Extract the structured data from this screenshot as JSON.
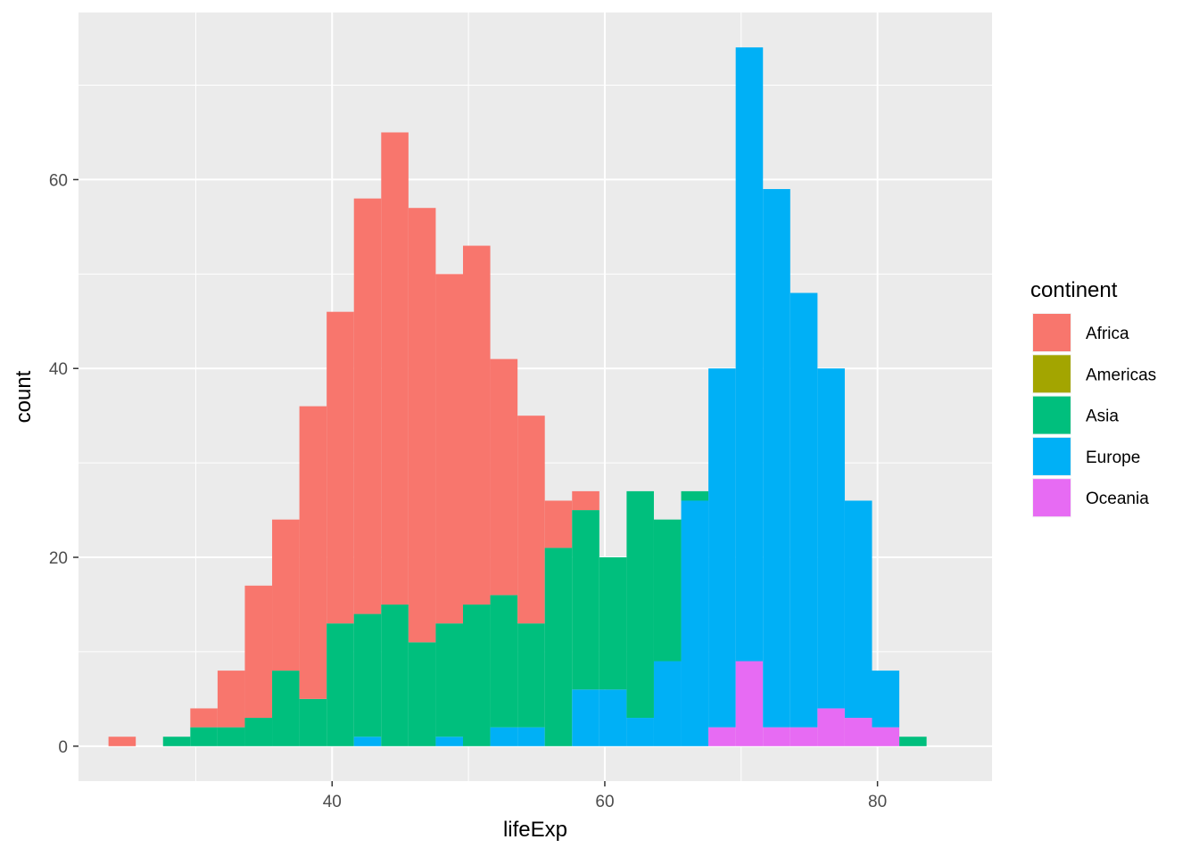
{
  "chart_data": {
    "type": "bar",
    "subtype": "stacked-histogram",
    "xlabel": "lifeExp",
    "ylabel": "count",
    "xlim": [
      21.4,
      88.4
    ],
    "ylim": [
      -3.7,
      77.7
    ],
    "x_ticks": [
      40,
      60,
      80
    ],
    "x_tick_labels": [
      "40",
      "60",
      "80"
    ],
    "y_ticks": [
      0,
      20,
      40,
      60
    ],
    "y_tick_labels": [
      "0",
      "20",
      "40",
      "60"
    ],
    "grid": true,
    "bin_edges": [
      23.6,
      25.6,
      27.6,
      29.6,
      31.6,
      33.6,
      35.6,
      37.6,
      39.6,
      41.6,
      43.6,
      45.6,
      47.6,
      49.6,
      51.6,
      53.6,
      55.6,
      57.6,
      59.6,
      61.6,
      63.6,
      65.6,
      67.6,
      69.6,
      71.6,
      73.6,
      75.6,
      77.6,
      79.6,
      81.6,
      83.6,
      85.6
    ],
    "legend": {
      "title": "continent",
      "position": "right"
    },
    "series": [
      {
        "name": "Oceania",
        "color": "#E76BF3",
        "values": [
          0,
          0,
          0,
          0,
          0,
          0,
          0,
          0,
          0,
          0,
          0,
          0,
          0,
          0,
          0,
          0,
          0,
          0,
          0,
          0,
          0,
          0,
          2,
          9,
          2,
          2,
          4,
          3,
          2,
          0
        ]
      },
      {
        "name": "Europe",
        "color": "#00B0F6",
        "values": [
          0,
          0,
          0,
          0,
          0,
          0,
          0,
          0,
          0,
          1,
          0,
          0,
          1,
          0,
          2,
          2,
          0,
          6,
          6,
          3,
          9,
          26,
          38,
          65,
          57,
          46,
          36,
          23,
          6,
          0
        ]
      },
      {
        "name": "Asia",
        "color": "#00BF7D",
        "values": [
          0,
          0,
          1,
          2,
          2,
          3,
          8,
          5,
          13,
          13,
          15,
          11,
          12,
          15,
          14,
          11,
          21,
          19,
          14,
          24,
          15,
          1,
          0,
          0,
          0,
          0,
          0,
          0,
          0,
          1
        ]
      },
      {
        "name": "Americas",
        "color": "#A3A500",
        "values": [
          0,
          0,
          0,
          0,
          0,
          0,
          0,
          0,
          0,
          0,
          0,
          0,
          0,
          0,
          0,
          0,
          0,
          0,
          0,
          0,
          0,
          0,
          0,
          0,
          0,
          0,
          0,
          0,
          0,
          0
        ]
      },
      {
        "name": "Africa",
        "color": "#F8766D",
        "values": [
          1,
          0,
          0,
          2,
          6,
          14,
          16,
          31,
          33,
          44,
          50,
          46,
          37,
          38,
          25,
          22,
          5,
          2,
          0,
          0,
          0,
          0,
          0,
          0,
          0,
          0,
          0,
          0,
          0,
          0
        ]
      }
    ],
    "legend_order": [
      "Africa",
      "Americas",
      "Asia",
      "Europe",
      "Oceania"
    ]
  }
}
